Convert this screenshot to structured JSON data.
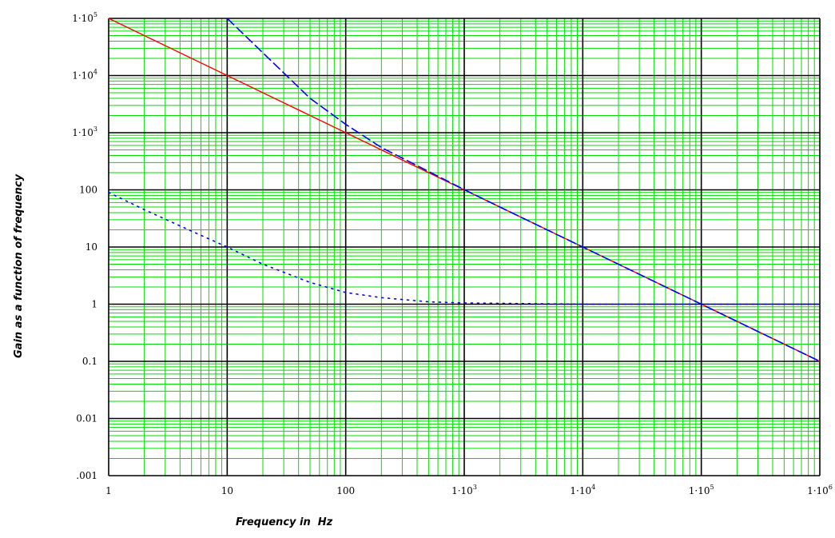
{
  "chart_data": {
    "type": "line",
    "xlabel": "Frequency in  Hz",
    "ylabel": "Gain as a function of frequency",
    "x_scale": "log",
    "y_scale": "log",
    "xlim": [
      1,
      1000000
    ],
    "ylim": [
      0.001,
      100000
    ],
    "grid": true,
    "x_ticks": [
      {
        "value": 1,
        "mantissa": "1",
        "exp": ""
      },
      {
        "value": 10,
        "mantissa": "10",
        "exp": ""
      },
      {
        "value": 100,
        "mantissa": "100",
        "exp": ""
      },
      {
        "value": 1000,
        "mantissa": "1·10",
        "exp": "3"
      },
      {
        "value": 10000,
        "mantissa": "1·10",
        "exp": "4"
      },
      {
        "value": 100000,
        "mantissa": "1·10",
        "exp": "5"
      },
      {
        "value": 1000000,
        "mantissa": "1·10",
        "exp": "6"
      }
    ],
    "y_ticks": [
      {
        "value": 100000,
        "mantissa": "1·10",
        "exp": "5"
      },
      {
        "value": 10000,
        "mantissa": "1·10",
        "exp": "4"
      },
      {
        "value": 1000,
        "mantissa": "1·10",
        "exp": "3"
      },
      {
        "value": 100,
        "mantissa": "100",
        "exp": ""
      },
      {
        "value": 10,
        "mantissa": "10",
        "exp": ""
      },
      {
        "value": 1,
        "mantissa": "1",
        "exp": ""
      },
      {
        "value": 0.1,
        "mantissa": "0.1",
        "exp": ""
      },
      {
        "value": 0.01,
        "mantissa": "0.01",
        "exp": ""
      },
      {
        "value": 0.001,
        "mantissa": ".001",
        "exp": ""
      }
    ],
    "series": [
      {
        "style": "solid",
        "color": "#ff0000",
        "x": [
          1,
          10,
          100,
          1000,
          10000,
          100000,
          1000000
        ],
        "y": [
          100000,
          10000,
          1000,
          100,
          10,
          1,
          0.1
        ]
      },
      {
        "style": "dashed",
        "color": "#0000ff",
        "x": [
          10,
          20,
          50,
          100,
          200,
          500,
          1000,
          2000,
          5000,
          10000,
          20000,
          50000,
          100000,
          200000,
          500000,
          1000000
        ],
        "y": [
          100000,
          25000,
          4000,
          1400,
          550,
          210,
          101,
          50,
          20,
          10,
          5,
          2,
          1,
          0.5,
          0.2,
          0.1
        ]
      },
      {
        "style": "dotted",
        "color": "#0000ff",
        "x": [
          1,
          2,
          5,
          10,
          20,
          50,
          100,
          200,
          500,
          1000,
          10000,
          100000,
          1000000
        ],
        "y": [
          90,
          45,
          19,
          10,
          5,
          2.4,
          1.6,
          1.3,
          1.1,
          1.05,
          1.0,
          1.0,
          1.0
        ]
      }
    ]
  },
  "colors": {
    "grid_major": "#000000",
    "grid_minor": "#00dd00",
    "background": "#ffffff"
  }
}
